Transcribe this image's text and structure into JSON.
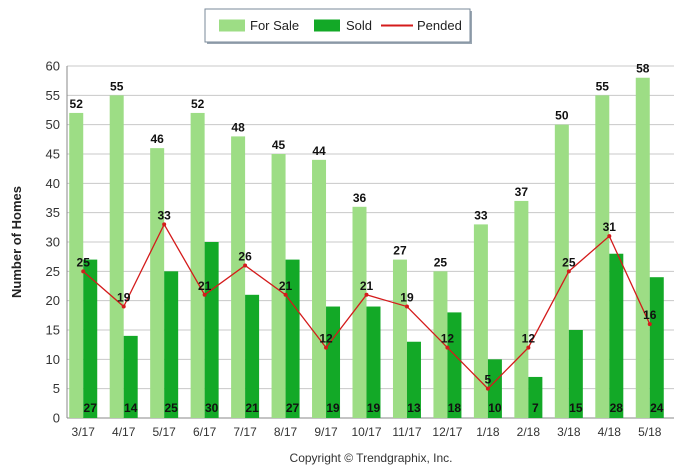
{
  "chart_data": {
    "type": "bar",
    "title": "",
    "xlabel": "",
    "ylabel": "Number of Homes",
    "ylim": [
      0,
      60
    ],
    "yticks": [
      0,
      5,
      10,
      15,
      20,
      25,
      30,
      35,
      40,
      45,
      50,
      55,
      60
    ],
    "grid": true,
    "legend_position": "top-center",
    "categories": [
      "3/17",
      "4/17",
      "5/17",
      "6/17",
      "7/17",
      "8/17",
      "9/17",
      "10/17",
      "11/17",
      "12/17",
      "1/18",
      "2/18",
      "3/18",
      "4/18",
      "5/18"
    ],
    "series": [
      {
        "name": "For Sale",
        "kind": "bar",
        "color": "#9ddd85",
        "values": [
          52,
          55,
          46,
          52,
          48,
          45,
          44,
          36,
          27,
          25,
          33,
          37,
          50,
          55,
          58
        ]
      },
      {
        "name": "Sold",
        "kind": "bar",
        "color": "#13a927",
        "values": [
          27,
          14,
          25,
          30,
          21,
          27,
          19,
          19,
          13,
          18,
          10,
          7,
          15,
          28,
          24
        ]
      },
      {
        "name": "Pended",
        "kind": "line",
        "color": "#d41b1b",
        "values": [
          25,
          19,
          33,
          21,
          26,
          21,
          12,
          21,
          19,
          12,
          5,
          12,
          25,
          31,
          16
        ]
      }
    ],
    "footer": "Copyright © Trendgraphix, Inc."
  }
}
